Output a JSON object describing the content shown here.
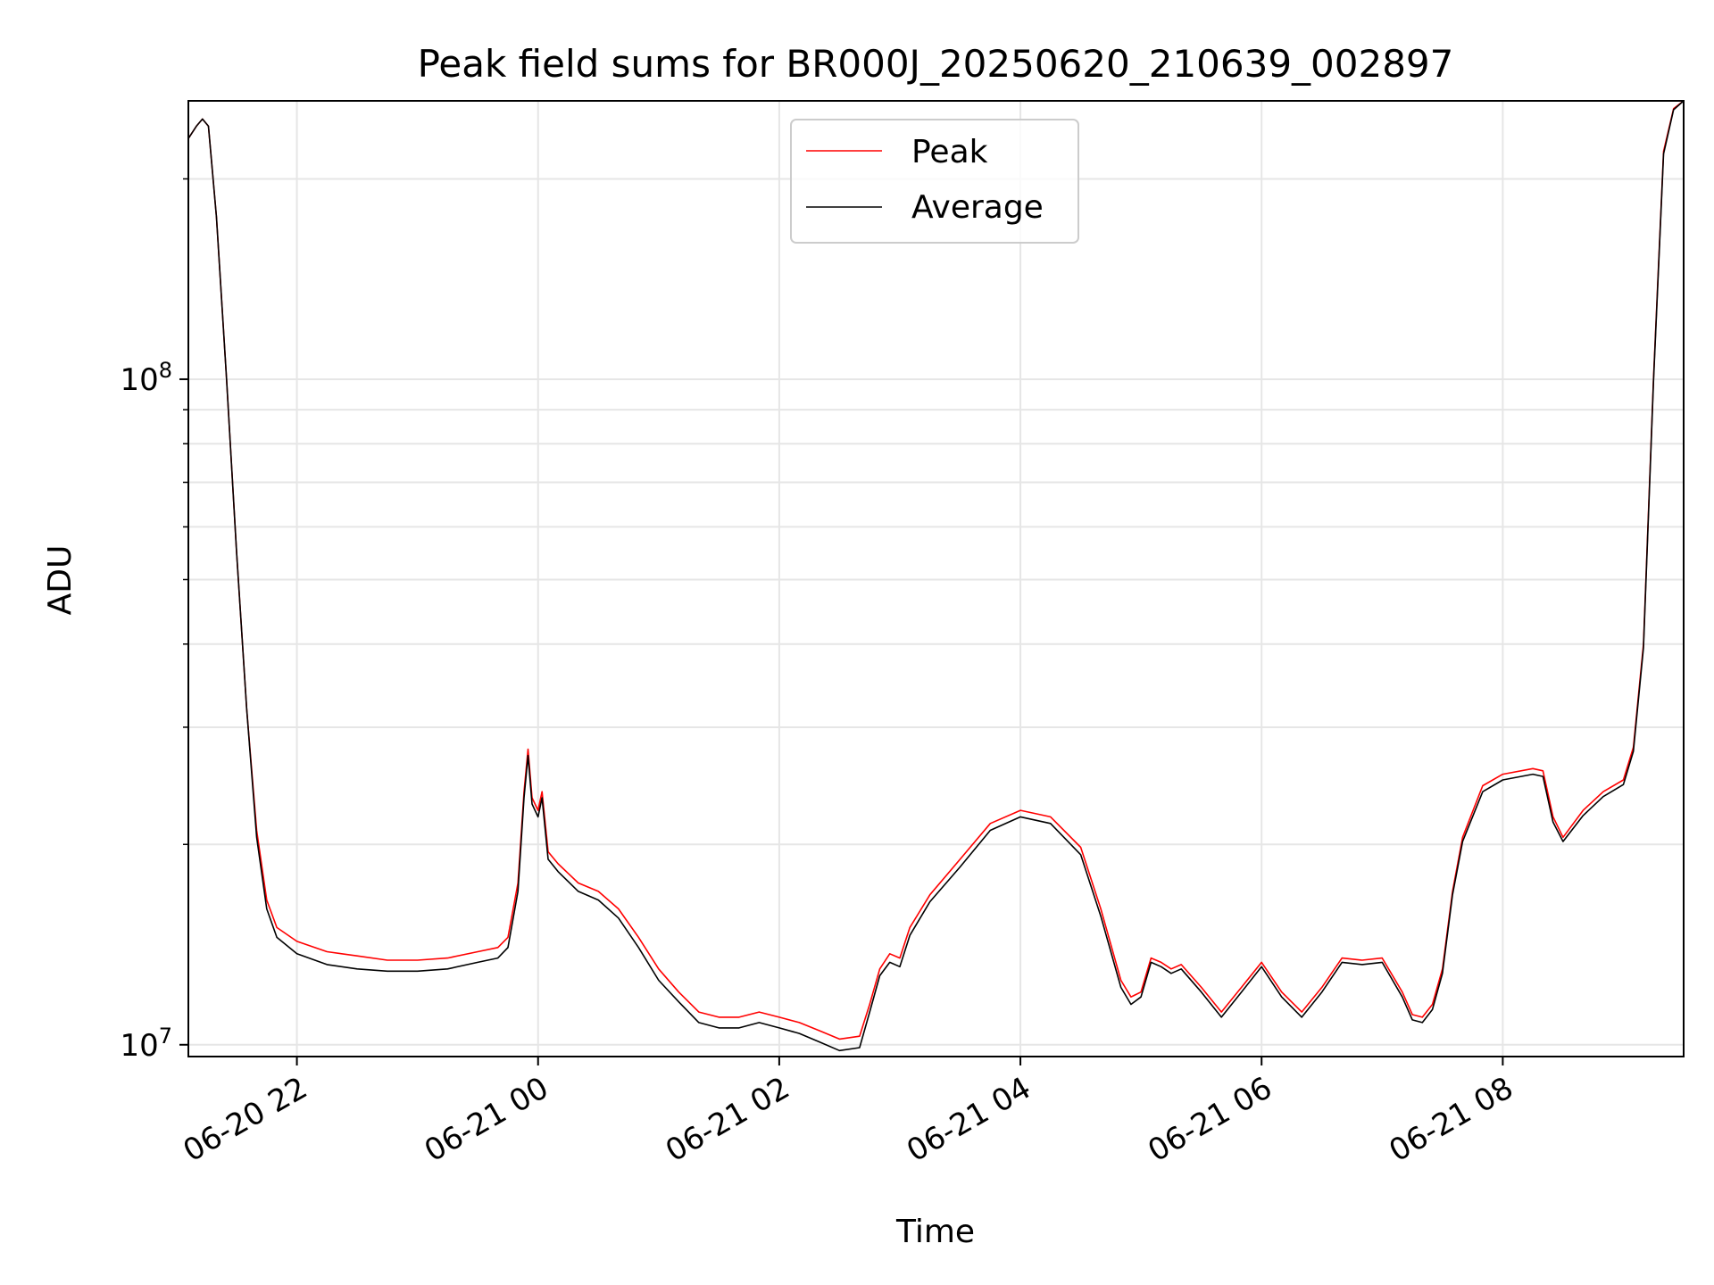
{
  "chart_data": {
    "type": "line",
    "title": "Peak field sums for BR000J_20250620_210639_002897",
    "xlabel": "Time",
    "ylabel": "ADU",
    "yscale": "log",
    "grid": true,
    "legend_position": "top-center",
    "xlim": [
      "2025-06-20 21:06",
      "2025-06-21 09:30"
    ],
    "ylim": [
      9600000,
      262000000
    ],
    "x_ticks": [
      {
        "x": "2025-06-20 22:00",
        "label": "06-20 22"
      },
      {
        "x": "2025-06-21 00:00",
        "label": "06-21 00"
      },
      {
        "x": "2025-06-21 02:00",
        "label": "06-21 02"
      },
      {
        "x": "2025-06-21 04:00",
        "label": "06-21 04"
      },
      {
        "x": "2025-06-21 06:00",
        "label": "06-21 06"
      },
      {
        "x": "2025-06-21 08:00",
        "label": "06-21 08"
      }
    ],
    "y_ticks": [
      {
        "value": 10000000,
        "base": "10",
        "exp": "7"
      },
      {
        "value": 100000000,
        "base": "10",
        "exp": "8"
      }
    ],
    "series": [
      {
        "name": "Peak",
        "color": "#ff0000",
        "points": [
          [
            "2025-06-20 21:06",
            230000000
          ],
          [
            "2025-06-20 21:10",
            240000000
          ],
          [
            "2025-06-20 21:13",
            246000000
          ],
          [
            "2025-06-20 21:16",
            240000000
          ],
          [
            "2025-06-20 21:20",
            175000000
          ],
          [
            "2025-06-20 21:25",
            100000000
          ],
          [
            "2025-06-20 21:30",
            55000000
          ],
          [
            "2025-06-20 21:35",
            32000000
          ],
          [
            "2025-06-20 21:40",
            21000000
          ],
          [
            "2025-06-20 21:45",
            16500000
          ],
          [
            "2025-06-20 21:50",
            15000000
          ],
          [
            "2025-06-20 22:00",
            14300000
          ],
          [
            "2025-06-20 22:15",
            13800000
          ],
          [
            "2025-06-20 22:30",
            13600000
          ],
          [
            "2025-06-20 22:45",
            13400000
          ],
          [
            "2025-06-20 23:00",
            13400000
          ],
          [
            "2025-06-20 23:15",
            13500000
          ],
          [
            "2025-06-20 23:30",
            13800000
          ],
          [
            "2025-06-20 23:40",
            14000000
          ],
          [
            "2025-06-20 23:45",
            14500000
          ],
          [
            "2025-06-20 23:50",
            17500000
          ],
          [
            "2025-06-20 23:53",
            24000000
          ],
          [
            "2025-06-20 23:55",
            27800000
          ],
          [
            "2025-06-20 23:57",
            23500000
          ],
          [
            "2025-06-21 00:00",
            22500000
          ],
          [
            "2025-06-21 00:02",
            24000000
          ],
          [
            "2025-06-21 00:05",
            19500000
          ],
          [
            "2025-06-21 00:10",
            18700000
          ],
          [
            "2025-06-21 00:20",
            17500000
          ],
          [
            "2025-06-21 00:30",
            17000000
          ],
          [
            "2025-06-21 00:40",
            16000000
          ],
          [
            "2025-06-21 00:50",
            14500000
          ],
          [
            "2025-06-21 01:00",
            13000000
          ],
          [
            "2025-06-21 01:10",
            12000000
          ],
          [
            "2025-06-21 01:20",
            11200000
          ],
          [
            "2025-06-21 01:30",
            11000000
          ],
          [
            "2025-06-21 01:40",
            11000000
          ],
          [
            "2025-06-21 01:50",
            11200000
          ],
          [
            "2025-06-21 02:00",
            11000000
          ],
          [
            "2025-06-21 02:10",
            10800000
          ],
          [
            "2025-06-21 02:20",
            10500000
          ],
          [
            "2025-06-21 02:30",
            10200000
          ],
          [
            "2025-06-21 02:40",
            10300000
          ],
          [
            "2025-06-21 02:45",
            11500000
          ],
          [
            "2025-06-21 02:50",
            13000000
          ],
          [
            "2025-06-21 02:55",
            13700000
          ],
          [
            "2025-06-21 03:00",
            13500000
          ],
          [
            "2025-06-21 03:05",
            15000000
          ],
          [
            "2025-06-21 03:15",
            16800000
          ],
          [
            "2025-06-21 03:30",
            19000000
          ],
          [
            "2025-06-21 03:45",
            21500000
          ],
          [
            "2025-06-21 04:00",
            22500000
          ],
          [
            "2025-06-21 04:15",
            22000000
          ],
          [
            "2025-06-21 04:30",
            19800000
          ],
          [
            "2025-06-21 04:40",
            16000000
          ],
          [
            "2025-06-21 04:50",
            12500000
          ],
          [
            "2025-06-21 04:55",
            11800000
          ],
          [
            "2025-06-21 05:00",
            12000000
          ],
          [
            "2025-06-21 05:05",
            13500000
          ],
          [
            "2025-06-21 05:10",
            13300000
          ],
          [
            "2025-06-21 05:15",
            13000000
          ],
          [
            "2025-06-21 05:20",
            13200000
          ],
          [
            "2025-06-21 05:30",
            12200000
          ],
          [
            "2025-06-21 05:40",
            11200000
          ],
          [
            "2025-06-21 05:50",
            12200000
          ],
          [
            "2025-06-21 06:00",
            13300000
          ],
          [
            "2025-06-21 06:10",
            12000000
          ],
          [
            "2025-06-21 06:20",
            11200000
          ],
          [
            "2025-06-21 06:30",
            12200000
          ],
          [
            "2025-06-21 06:40",
            13500000
          ],
          [
            "2025-06-21 06:50",
            13400000
          ],
          [
            "2025-06-21 07:00",
            13500000
          ],
          [
            "2025-06-21 07:10",
            12000000
          ],
          [
            "2025-06-21 07:15",
            11100000
          ],
          [
            "2025-06-21 07:20",
            11000000
          ],
          [
            "2025-06-21 07:25",
            11500000
          ],
          [
            "2025-06-21 07:30",
            13000000
          ],
          [
            "2025-06-21 07:35",
            17000000
          ],
          [
            "2025-06-21 07:40",
            20500000
          ],
          [
            "2025-06-21 07:50",
            24500000
          ],
          [
            "2025-06-21 08:00",
            25500000
          ],
          [
            "2025-06-21 08:15",
            26000000
          ],
          [
            "2025-06-21 08:20",
            25800000
          ],
          [
            "2025-06-21 08:25",
            22000000
          ],
          [
            "2025-06-21 08:30",
            20500000
          ],
          [
            "2025-06-21 08:40",
            22500000
          ],
          [
            "2025-06-21 08:50",
            24000000
          ],
          [
            "2025-06-21 09:00",
            25000000
          ],
          [
            "2025-06-21 09:05",
            28000000
          ],
          [
            "2025-06-21 09:10",
            40000000
          ],
          [
            "2025-06-21 09:15",
            100000000
          ],
          [
            "2025-06-21 09:20",
            220000000
          ],
          [
            "2025-06-21 09:25",
            255000000
          ],
          [
            "2025-06-21 09:30",
            262000000
          ]
        ]
      },
      {
        "name": "Average",
        "color": "#000000",
        "points": [
          [
            "2025-06-20 21:06",
            230000000
          ],
          [
            "2025-06-20 21:10",
            240000000
          ],
          [
            "2025-06-20 21:13",
            246000000
          ],
          [
            "2025-06-20 21:16",
            240000000
          ],
          [
            "2025-06-20 21:20",
            175000000
          ],
          [
            "2025-06-20 21:25",
            100000000
          ],
          [
            "2025-06-20 21:30",
            55000000
          ],
          [
            "2025-06-20 21:35",
            32000000
          ],
          [
            "2025-06-20 21:40",
            20500000
          ],
          [
            "2025-06-20 21:45",
            16000000
          ],
          [
            "2025-06-20 21:50",
            14500000
          ],
          [
            "2025-06-20 22:00",
            13700000
          ],
          [
            "2025-06-20 22:15",
            13200000
          ],
          [
            "2025-06-20 22:30",
            13000000
          ],
          [
            "2025-06-20 22:45",
            12900000
          ],
          [
            "2025-06-20 23:00",
            12900000
          ],
          [
            "2025-06-20 23:15",
            13000000
          ],
          [
            "2025-06-20 23:30",
            13300000
          ],
          [
            "2025-06-20 23:40",
            13500000
          ],
          [
            "2025-06-20 23:45",
            14000000
          ],
          [
            "2025-06-20 23:50",
            17000000
          ],
          [
            "2025-06-20 23:53",
            23500000
          ],
          [
            "2025-06-20 23:55",
            27200000
          ],
          [
            "2025-06-20 23:57",
            23000000
          ],
          [
            "2025-06-21 00:00",
            22000000
          ],
          [
            "2025-06-21 00:02",
            23500000
          ],
          [
            "2025-06-21 00:05",
            19000000
          ],
          [
            "2025-06-21 00:10",
            18200000
          ],
          [
            "2025-06-21 00:20",
            17000000
          ],
          [
            "2025-06-21 00:30",
            16500000
          ],
          [
            "2025-06-21 00:40",
            15500000
          ],
          [
            "2025-06-21 00:50",
            14000000
          ],
          [
            "2025-06-21 01:00",
            12500000
          ],
          [
            "2025-06-21 01:10",
            11600000
          ],
          [
            "2025-06-21 01:20",
            10800000
          ],
          [
            "2025-06-21 01:30",
            10600000
          ],
          [
            "2025-06-21 01:40",
            10600000
          ],
          [
            "2025-06-21 01:50",
            10800000
          ],
          [
            "2025-06-21 02:00",
            10600000
          ],
          [
            "2025-06-21 02:10",
            10400000
          ],
          [
            "2025-06-21 02:20",
            10100000
          ],
          [
            "2025-06-21 02:30",
            9800000
          ],
          [
            "2025-06-21 02:40",
            9900000
          ],
          [
            "2025-06-21 02:45",
            11200000
          ],
          [
            "2025-06-21 02:50",
            12700000
          ],
          [
            "2025-06-21 02:55",
            13300000
          ],
          [
            "2025-06-21 03:00",
            13100000
          ],
          [
            "2025-06-21 03:05",
            14600000
          ],
          [
            "2025-06-21 03:15",
            16400000
          ],
          [
            "2025-06-21 03:30",
            18500000
          ],
          [
            "2025-06-21 03:45",
            21000000
          ],
          [
            "2025-06-21 04:00",
            22000000
          ],
          [
            "2025-06-21 04:15",
            21500000
          ],
          [
            "2025-06-21 04:30",
            19300000
          ],
          [
            "2025-06-21 04:40",
            15600000
          ],
          [
            "2025-06-21 04:50",
            12200000
          ],
          [
            "2025-06-21 04:55",
            11500000
          ],
          [
            "2025-06-21 05:00",
            11800000
          ],
          [
            "2025-06-21 05:05",
            13300000
          ],
          [
            "2025-06-21 05:10",
            13100000
          ],
          [
            "2025-06-21 05:15",
            12800000
          ],
          [
            "2025-06-21 05:20",
            13000000
          ],
          [
            "2025-06-21 05:30",
            12000000
          ],
          [
            "2025-06-21 05:40",
            11000000
          ],
          [
            "2025-06-21 05:50",
            12000000
          ],
          [
            "2025-06-21 06:00",
            13100000
          ],
          [
            "2025-06-21 06:10",
            11800000
          ],
          [
            "2025-06-21 06:20",
            11000000
          ],
          [
            "2025-06-21 06:30",
            12000000
          ],
          [
            "2025-06-21 06:40",
            13300000
          ],
          [
            "2025-06-21 06:50",
            13200000
          ],
          [
            "2025-06-21 07:00",
            13300000
          ],
          [
            "2025-06-21 07:10",
            11800000
          ],
          [
            "2025-06-21 07:15",
            10900000
          ],
          [
            "2025-06-21 07:20",
            10800000
          ],
          [
            "2025-06-21 07:25",
            11300000
          ],
          [
            "2025-06-21 07:30",
            12800000
          ],
          [
            "2025-06-21 07:35",
            16800000
          ],
          [
            "2025-06-21 07:40",
            20200000
          ],
          [
            "2025-06-21 07:50",
            24000000
          ],
          [
            "2025-06-21 08:00",
            25000000
          ],
          [
            "2025-06-21 08:15",
            25500000
          ],
          [
            "2025-06-21 08:20",
            25300000
          ],
          [
            "2025-06-21 08:25",
            21600000
          ],
          [
            "2025-06-21 08:30",
            20200000
          ],
          [
            "2025-06-21 08:40",
            22100000
          ],
          [
            "2025-06-21 08:50",
            23600000
          ],
          [
            "2025-06-21 09:00",
            24600000
          ],
          [
            "2025-06-21 09:05",
            27600000
          ],
          [
            "2025-06-21 09:10",
            39500000
          ],
          [
            "2025-06-21 09:15",
            99000000
          ],
          [
            "2025-06-21 09:20",
            218000000
          ],
          [
            "2025-06-21 09:25",
            254000000
          ],
          [
            "2025-06-21 09:30",
            262000000
          ]
        ]
      }
    ]
  }
}
